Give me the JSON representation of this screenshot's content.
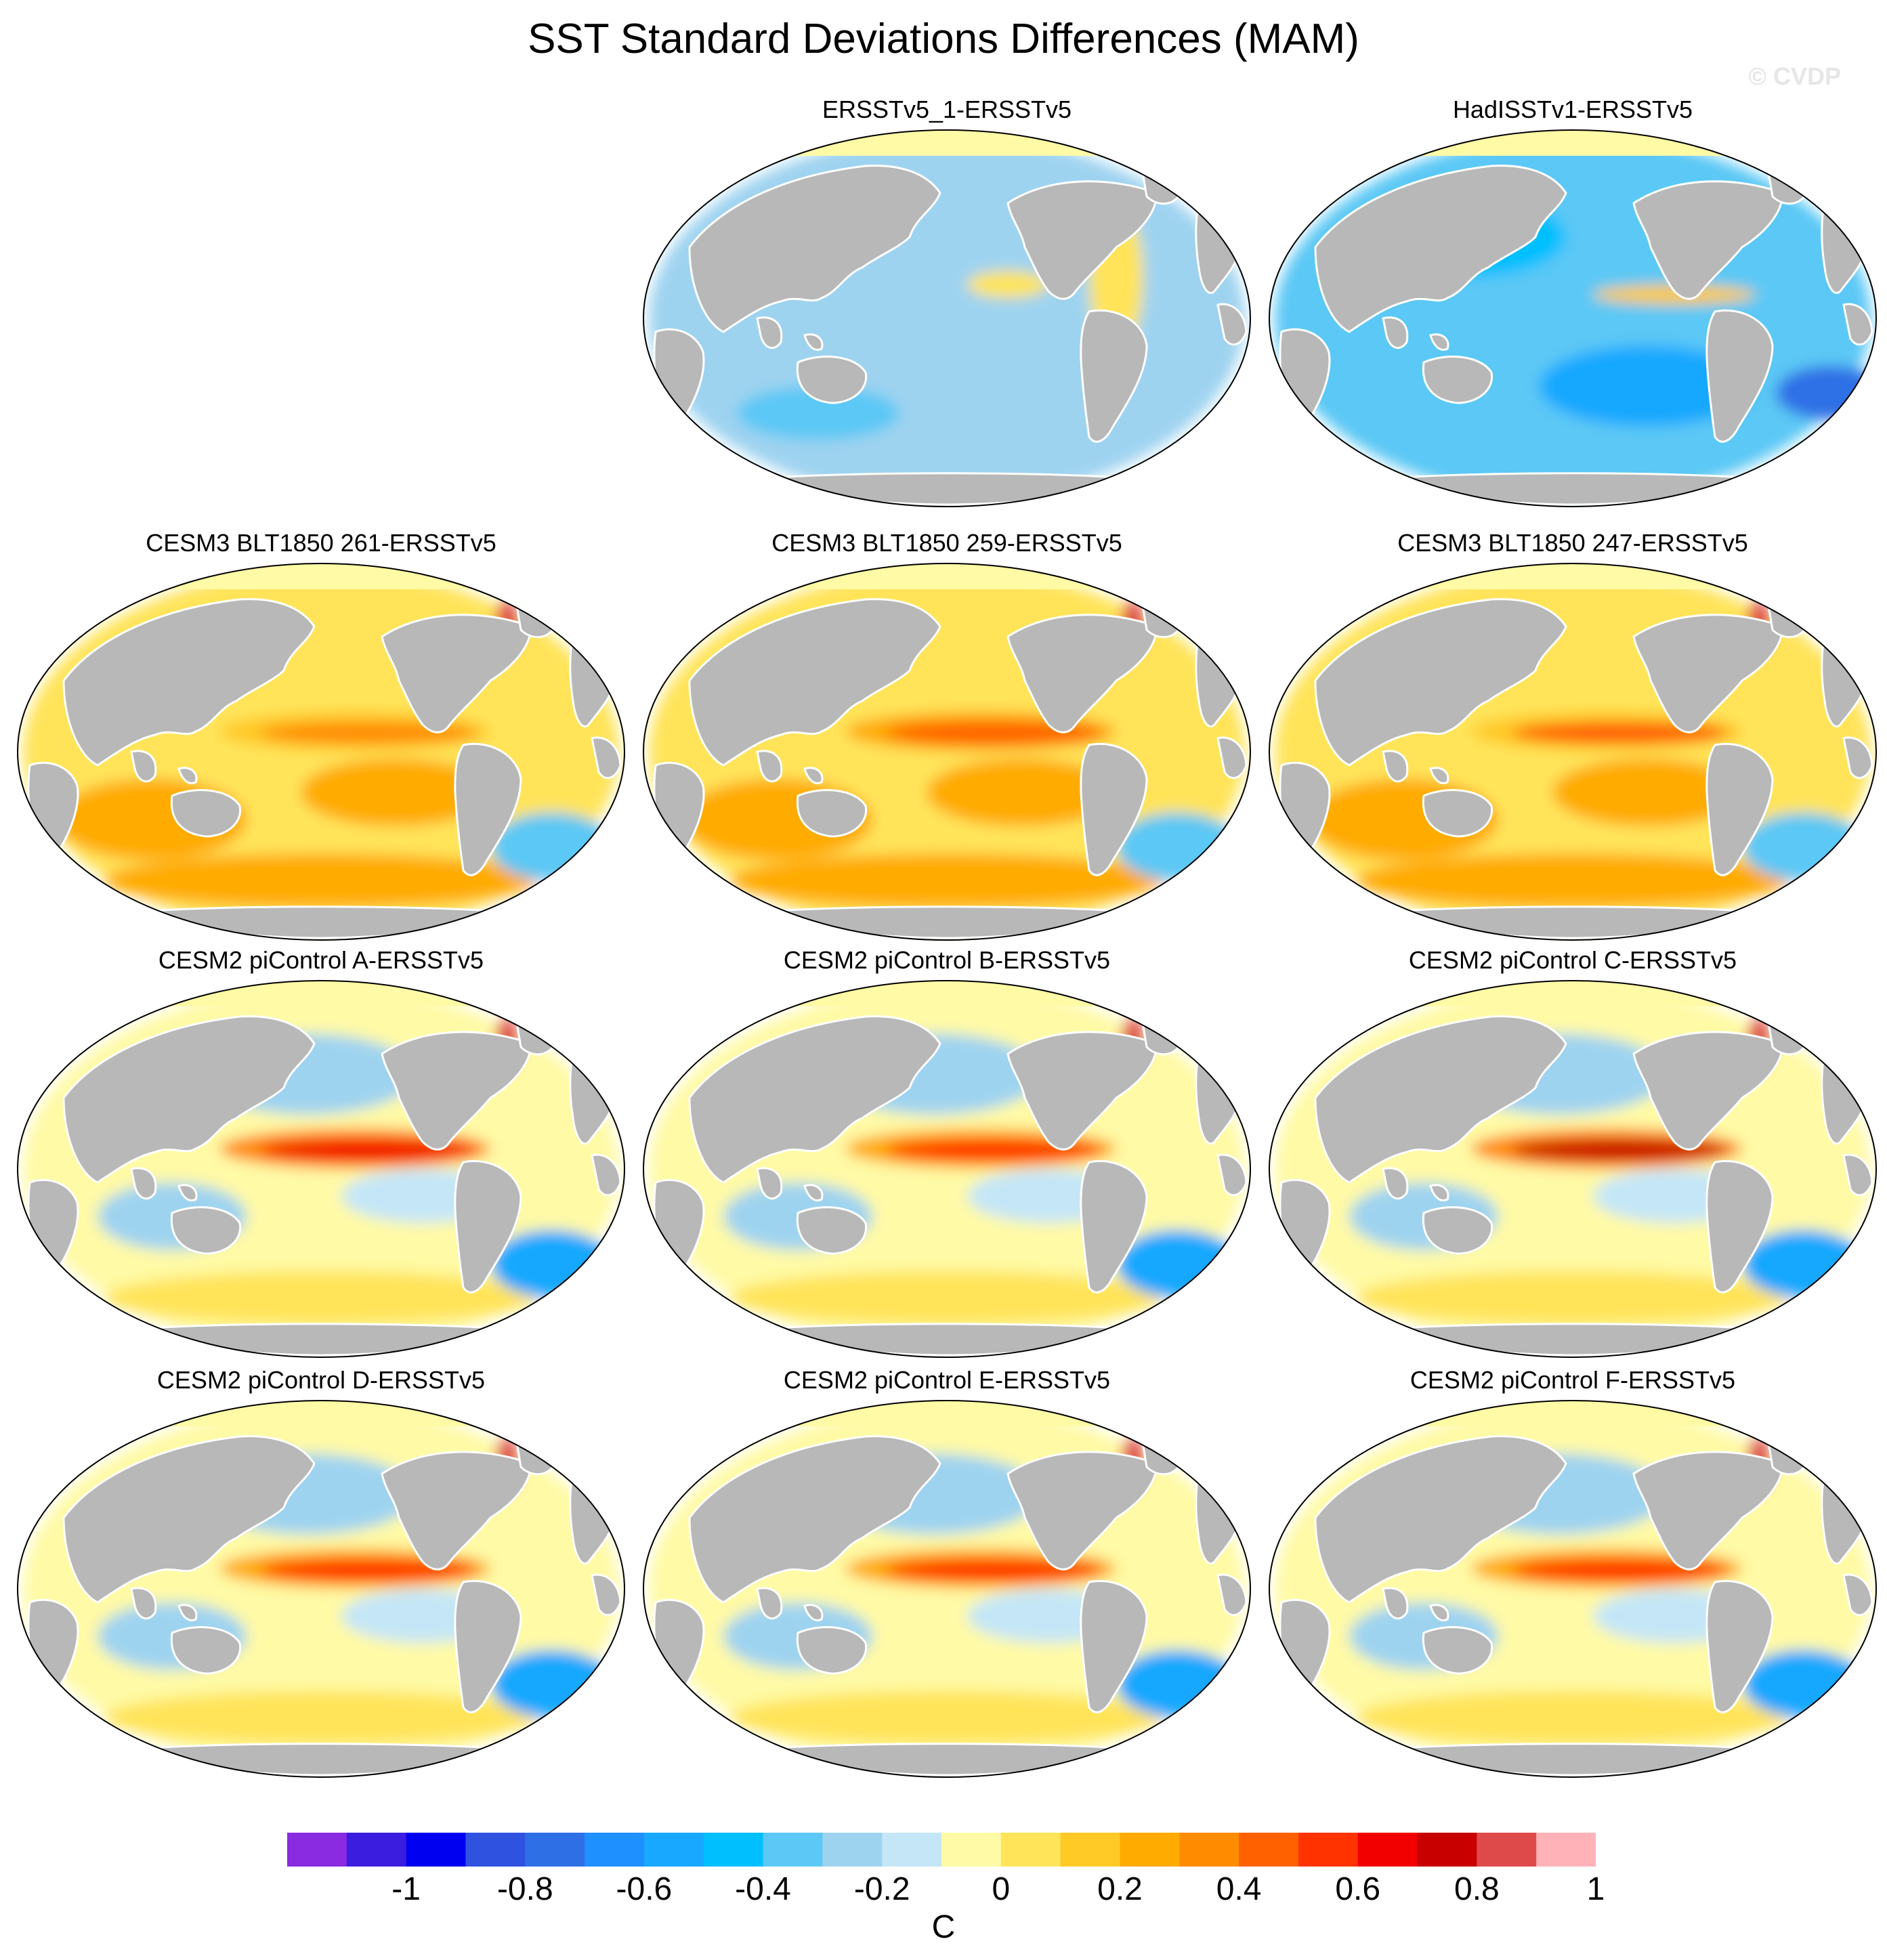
{
  "figure": {
    "title": "SST Standard Deviations Differences (MAM)",
    "watermark": "© CVDP"
  },
  "panels": [
    {
      "title": "ERSSTv5_1-ERSSTv5",
      "pattern": "weak-neutral",
      "enso": 0.05
    },
    {
      "title": "HadISSTv1-ERSSTv5",
      "pattern": "negative",
      "enso": 0.1
    },
    {
      "title": "CESM3 BLT1850 261-ERSSTv5",
      "pattern": "positive",
      "enso": 0.45
    },
    {
      "title": "CESM3 BLT1850 259-ERSSTv5",
      "pattern": "positive",
      "enso": 0.55
    },
    {
      "title": "CESM3 BLT1850 247-ERSSTv5",
      "pattern": "positive",
      "enso": 0.5
    },
    {
      "title": "CESM2 piControl A-ERSSTv5",
      "pattern": "mixed",
      "enso": 0.75
    },
    {
      "title": "CESM2 piControl B-ERSSTv5",
      "pattern": "mixed",
      "enso": 0.6
    },
    {
      "title": "CESM2 piControl C-ERSSTv5",
      "pattern": "mixed",
      "enso": 0.8
    },
    {
      "title": "CESM2 piControl D-ERSSTv5",
      "pattern": "mixed",
      "enso": 0.65
    },
    {
      "title": "CESM2 piControl E-ERSSTv5",
      "pattern": "mixed",
      "enso": 0.6
    },
    {
      "title": "CESM2 piControl F-ERSSTv5",
      "pattern": "mixed",
      "enso": 0.65
    }
  ],
  "colorbar": {
    "unit": "C",
    "tick_labels": [
      "-1",
      "-0.8",
      "-0.6",
      "-0.4",
      "-0.2",
      "0",
      "0.2",
      "0.4",
      "0.6",
      "0.8",
      "1"
    ],
    "colors": [
      "#8a2be2",
      "#3b1de0",
      "#0000f0",
      "#2f52e0",
      "#2f6fe6",
      "#1e90ff",
      "#18a8ff",
      "#00bfff",
      "#5cc8f5",
      "#9ed3f0",
      "#c4e6f7",
      "#fffaa6",
      "#ffe45a",
      "#ffc926",
      "#ffab00",
      "#ff8c00",
      "#ff6100",
      "#ff3300",
      "#f20000",
      "#c80000",
      "#de4a4a",
      "#ffb3b8"
    ]
  }
}
